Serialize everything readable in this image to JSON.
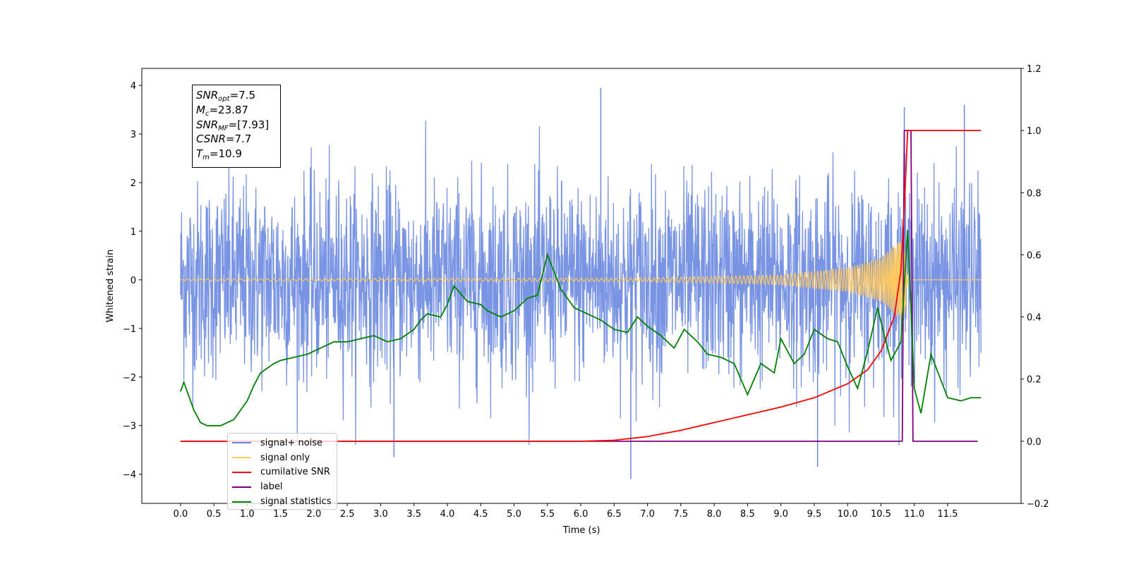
{
  "infobox": {
    "snr_opt": "=7.5",
    "mc": "=23.87",
    "snr_mf": "=[7.93]",
    "csnr": "=7.7",
    "tm": "=10.9"
  },
  "legend": [
    {
      "label": "signal+ noise",
      "color": "#6a88e0"
    },
    {
      "label": "signal only",
      "color": "#ffc860"
    },
    {
      "label": "cumilative SNR",
      "color": "#ff0000"
    },
    {
      "label": "label",
      "color": "#800080"
    },
    {
      "label": "signal statistics",
      "color": "#008000"
    }
  ],
  "chart_data": {
    "type": "line",
    "xlabel": "Time (s)",
    "ylabel": "Whitened strain",
    "xlim": [
      -0.58,
      12.6
    ],
    "ylim": [
      -4.6,
      4.35
    ],
    "y2lim": [
      -0.2,
      1.2
    ],
    "x_ticks": [
      "0.0",
      "0.5",
      "1.0",
      "1.5",
      "2.0",
      "2.5",
      "3.0",
      "3.5",
      "4.0",
      "4.5",
      "5.0",
      "5.5",
      "6.0",
      "6.5",
      "7.0",
      "7.5",
      "8.0",
      "8.5",
      "9.0",
      "9.5",
      "10.0",
      "10.5",
      "11.0",
      "11.5"
    ],
    "y_ticks": [
      "4",
      "3",
      "2",
      "1",
      "0",
      "−1",
      "−2",
      "−3",
      "−4"
    ],
    "y2_ticks": [
      "1.2",
      "1.0",
      "0.8",
      "0.6",
      "0.4",
      "0.2",
      "0.0",
      "−0.2"
    ],
    "colors": {
      "signal_noise": "#6a88e0",
      "signal_only": "#ffc860",
      "cumulative_snr": "#ff0000",
      "label": "#800080",
      "signal_statistics": "#008000"
    },
    "series": [
      {
        "name": "signal+ noise",
        "axis": "left",
        "x_range": [
          0.0,
          12.0
        ],
        "baseline_band": [
          -1.5,
          1.5
        ],
        "extremes": [
          [
            6.3,
            3.95
          ],
          [
            6.75,
            -4.1
          ],
          [
            10.85,
            3.55
          ],
          [
            11.75,
            3.6
          ],
          [
            3.2,
            -3.65
          ],
          [
            9.55,
            -3.85
          ]
        ]
      },
      {
        "name": "signal only",
        "axis": "left",
        "envelope": [
          [
            0.0,
            0.02
          ],
          [
            7.0,
            0.04
          ],
          [
            9.0,
            0.1
          ],
          [
            10.0,
            0.25
          ],
          [
            10.5,
            0.45
          ],
          [
            10.85,
            0.9
          ],
          [
            10.9,
            0.0
          ]
        ]
      },
      {
        "name": "cumilative SNR",
        "axis": "right",
        "points": [
          [
            0.0,
            0.0
          ],
          [
            6.0,
            0.0
          ],
          [
            6.5,
            0.003
          ],
          [
            7.0,
            0.015
          ],
          [
            7.5,
            0.035
          ],
          [
            8.0,
            0.06
          ],
          [
            8.5,
            0.085
          ],
          [
            9.0,
            0.11
          ],
          [
            9.5,
            0.14
          ],
          [
            10.0,
            0.185
          ],
          [
            10.3,
            0.23
          ],
          [
            10.5,
            0.29
          ],
          [
            10.7,
            0.4
          ],
          [
            10.8,
            0.55
          ],
          [
            10.85,
            0.75
          ],
          [
            10.9,
            1.0
          ],
          [
            12.0,
            1.0
          ]
        ]
      },
      {
        "name": "label",
        "axis": "right",
        "points": [
          [
            0.0,
            0.0
          ],
          [
            10.82,
            0.0
          ],
          [
            10.85,
            1.0
          ],
          [
            10.95,
            1.0
          ],
          [
            10.98,
            0.0
          ],
          [
            11.95,
            0.0
          ]
        ]
      },
      {
        "name": "signal statistics",
        "axis": "right",
        "points": [
          [
            0.0,
            0.16
          ],
          [
            0.05,
            0.19
          ],
          [
            0.1,
            0.16
          ],
          [
            0.2,
            0.1
          ],
          [
            0.3,
            0.06
          ],
          [
            0.4,
            0.05
          ],
          [
            0.6,
            0.05
          ],
          [
            0.8,
            0.07
          ],
          [
            1.0,
            0.13
          ],
          [
            1.1,
            0.18
          ],
          [
            1.2,
            0.22
          ],
          [
            1.4,
            0.25
          ],
          [
            1.5,
            0.26
          ],
          [
            1.7,
            0.27
          ],
          [
            1.9,
            0.28
          ],
          [
            2.1,
            0.3
          ],
          [
            2.3,
            0.32
          ],
          [
            2.5,
            0.32
          ],
          [
            2.7,
            0.33
          ],
          [
            2.9,
            0.34
          ],
          [
            3.1,
            0.32
          ],
          [
            3.3,
            0.33
          ],
          [
            3.5,
            0.36
          ],
          [
            3.6,
            0.39
          ],
          [
            3.7,
            0.41
          ],
          [
            3.9,
            0.4
          ],
          [
            4.0,
            0.44
          ],
          [
            4.1,
            0.5
          ],
          [
            4.3,
            0.45
          ],
          [
            4.5,
            0.44
          ],
          [
            4.6,
            0.42
          ],
          [
            4.8,
            0.4
          ],
          [
            5.0,
            0.42
          ],
          [
            5.2,
            0.46
          ],
          [
            5.35,
            0.47
          ],
          [
            5.5,
            0.6
          ],
          [
            5.7,
            0.49
          ],
          [
            5.9,
            0.43
          ],
          [
            6.1,
            0.41
          ],
          [
            6.3,
            0.39
          ],
          [
            6.5,
            0.36
          ],
          [
            6.7,
            0.35
          ],
          [
            6.85,
            0.4
          ],
          [
            7.0,
            0.37
          ],
          [
            7.2,
            0.34
          ],
          [
            7.4,
            0.3
          ],
          [
            7.55,
            0.36
          ],
          [
            7.75,
            0.32
          ],
          [
            7.9,
            0.28
          ],
          [
            8.1,
            0.27
          ],
          [
            8.3,
            0.25
          ],
          [
            8.5,
            0.15
          ],
          [
            8.7,
            0.25
          ],
          [
            8.9,
            0.22
          ],
          [
            9.0,
            0.33
          ],
          [
            9.2,
            0.25
          ],
          [
            9.35,
            0.28
          ],
          [
            9.5,
            0.36
          ],
          [
            9.7,
            0.33
          ],
          [
            9.85,
            0.32
          ],
          [
            10.0,
            0.24
          ],
          [
            10.15,
            0.17
          ],
          [
            10.3,
            0.29
          ],
          [
            10.45,
            0.43
          ],
          [
            10.55,
            0.34
          ],
          [
            10.65,
            0.26
          ],
          [
            10.8,
            0.32
          ],
          [
            10.9,
            0.68
          ],
          [
            11.0,
            0.17
          ],
          [
            11.1,
            0.09
          ],
          [
            11.25,
            0.28
          ],
          [
            11.5,
            0.14
          ],
          [
            11.7,
            0.13
          ],
          [
            11.85,
            0.14
          ],
          [
            12.0,
            0.14
          ]
        ]
      }
    ]
  }
}
